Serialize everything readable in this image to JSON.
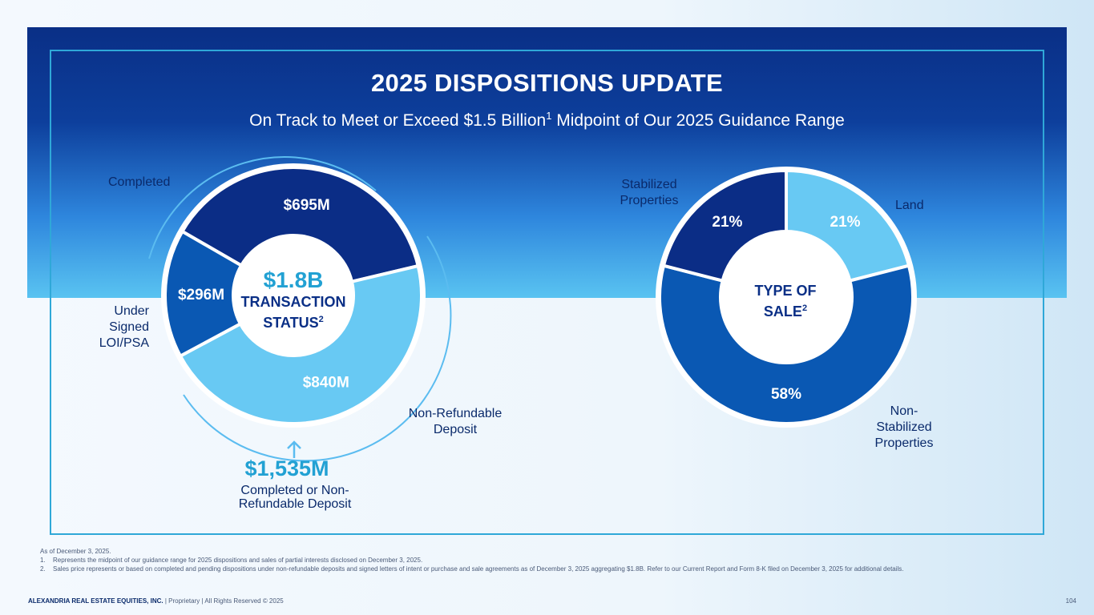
{
  "header": {
    "title": "2025 DISPOSITIONS UPDATE",
    "subtitle_pre": "On Track to Meet or Exceed $1.5 Billion",
    "subtitle_sup": "1",
    "subtitle_post": " Midpoint of Our 2025 Guidance Range"
  },
  "chart_data": [
    {
      "type": "pie",
      "title": "TRANSACTION STATUS",
      "title_sup": "2",
      "total_label": "$1.8B",
      "categories": [
        "Completed",
        "Non-Refundable Deposit",
        "Under Signed LOI/PSA"
      ],
      "values": [
        695,
        840,
        296
      ],
      "value_labels": [
        "$695M",
        "$840M",
        "$296M"
      ],
      "category_labels": [
        "Completed",
        "Non-Refundable Deposit",
        "Under Signed LOI/PSA"
      ],
      "colors": [
        "#0b2d86",
        "#68c9f3",
        "#0a58b3"
      ],
      "callout": {
        "amount": "$1,535M",
        "text": "Completed or Non-Refundable Deposit"
      }
    },
    {
      "type": "pie",
      "title": "TYPE OF SALE",
      "title_sup": "2",
      "categories": [
        "Land",
        "Non-Stabilized Properties",
        "Stabilized Properties"
      ],
      "values": [
        21,
        58,
        21
      ],
      "value_labels": [
        "21%",
        "58%",
        "21%"
      ],
      "category_labels": [
        "Land",
        "Non-Stabilized Properties",
        "Stabilized Properties"
      ],
      "colors": [
        "#68c9f3",
        "#0a58b3",
        "#0b2d86"
      ]
    }
  ],
  "footnotes": {
    "as_of": "As of December 3, 2025.",
    "items": [
      {
        "num": "1.",
        "text": "Represents the midpoint of our guidance range for 2025 dispositions and sales of partial interests disclosed on December 3, 2025."
      },
      {
        "num": "2.",
        "text": "Sales price represents or based on completed and pending dispositions under non-refundable deposits and signed letters of intent or purchase and sale agreements as of December 3, 2025 aggregating $1.8B. Refer to our Current Report and Form 8-K filed on December 3, 2025 for additional details."
      }
    ]
  },
  "footer": {
    "company": "ALEXANDRIA REAL ESTATE EQUITIES, INC.",
    "rights": " | Proprietary | All Rights Reserved © 2025",
    "page": "104"
  }
}
